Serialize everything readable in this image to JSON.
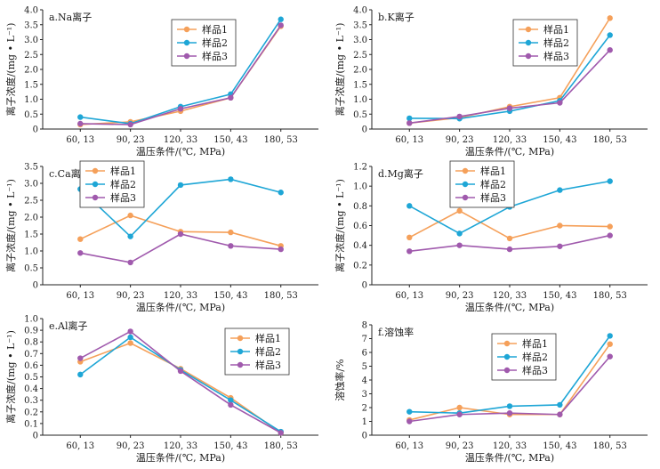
{
  "chart_data": [
    {
      "type": "line",
      "title": "a.Na离子",
      "xlabel": "温压条件/(℃, MPa)",
      "ylabel": "离子浓度/(mg • L⁻¹)",
      "categories": [
        "60, 13",
        "90, 23",
        "120, 33",
        "150, 43",
        "180, 53"
      ],
      "ylim": [
        0,
        4.0
      ],
      "yticks": [
        "0",
        "0.5",
        "1.0",
        "1.5",
        "2.0",
        "2.5",
        "3.0",
        "3.5",
        "4.0"
      ],
      "legend_position": "top-center",
      "series": [
        {
          "name": "样品1",
          "color": "#f5a05a",
          "values": [
            0.15,
            0.24,
            0.6,
            1.05,
            3.45
          ]
        },
        {
          "name": "样品2",
          "color": "#1ea6d6",
          "values": [
            0.4,
            0.18,
            0.75,
            1.17,
            3.68
          ]
        },
        {
          "name": "样品3",
          "color": "#a05aad",
          "values": [
            0.18,
            0.15,
            0.68,
            1.05,
            3.48
          ]
        }
      ]
    },
    {
      "type": "line",
      "title": "b.K离子",
      "xlabel": "温压条件/(℃, MPa)",
      "ylabel": "离子浓度/(mg • L⁻¹)",
      "categories": [
        "60, 13",
        "90, 23",
        "120, 33",
        "150, 43",
        "180, 53"
      ],
      "ylim": [
        0,
        4.0
      ],
      "yticks": [
        "0",
        "0.5",
        "1.0",
        "1.5",
        "2.0",
        "2.5",
        "3.0",
        "3.5",
        "4.0"
      ],
      "legend_position": "top-right",
      "series": [
        {
          "name": "样品1",
          "color": "#f5a05a",
          "values": [
            0.2,
            0.38,
            0.75,
            1.05,
            3.72
          ]
        },
        {
          "name": "样品2",
          "color": "#1ea6d6",
          "values": [
            0.36,
            0.35,
            0.6,
            0.95,
            3.15
          ]
        },
        {
          "name": "样品3",
          "color": "#a05aad",
          "values": [
            0.2,
            0.42,
            0.7,
            0.88,
            2.65
          ]
        }
      ]
    },
    {
      "type": "line",
      "title": "c.Ca离子",
      "xlabel": "温压条件/(℃, MPa)",
      "ylabel": "离子浓度/(mg • L⁻¹)",
      "categories": [
        "60, 13",
        "90, 23",
        "120, 33",
        "150, 43",
        "180, 53"
      ],
      "ylim": [
        0,
        3.5
      ],
      "yticks": [
        "0",
        "0.5",
        "1.0",
        "1.5",
        "2.0",
        "2.5",
        "3.0",
        "3.5"
      ],
      "legend_position": "top-left",
      "series": [
        {
          "name": "样品1",
          "color": "#f5a05a",
          "values": [
            1.35,
            2.05,
            1.57,
            1.55,
            1.15
          ]
        },
        {
          "name": "样品2",
          "color": "#1ea6d6",
          "values": [
            2.83,
            1.43,
            2.95,
            3.12,
            2.73
          ]
        },
        {
          "name": "样品3",
          "color": "#a05aad",
          "values": [
            0.94,
            0.66,
            1.5,
            1.15,
            1.05
          ]
        }
      ]
    },
    {
      "type": "line",
      "title": "d.Mg离子",
      "xlabel": "温压条件/(℃, MPa)",
      "ylabel": "离子浓度/(mg • L⁻¹)",
      "categories": [
        "60, 13",
        "90, 23",
        "120, 33",
        "150, 43",
        "180, 53"
      ],
      "ylim": [
        0,
        1.2
      ],
      "yticks": [
        "0",
        "0.2",
        "0.4",
        "0.6",
        "0.8",
        "1.0",
        "1.2"
      ],
      "legend_position": "top-center",
      "series": [
        {
          "name": "样品1",
          "color": "#f5a05a",
          "values": [
            0.48,
            0.75,
            0.47,
            0.6,
            0.59
          ]
        },
        {
          "name": "样品2",
          "color": "#1ea6d6",
          "values": [
            0.8,
            0.52,
            0.79,
            0.96,
            1.05
          ]
        },
        {
          "name": "样品3",
          "color": "#a05aad",
          "values": [
            0.34,
            0.4,
            0.36,
            0.39,
            0.5
          ]
        }
      ]
    },
    {
      "type": "line",
      "title": "e.Al离子",
      "xlabel": "温压条件/(℃, MPa)",
      "ylabel": "离子浓度/(mg • L⁻¹)",
      "categories": [
        "60, 13",
        "90, 23",
        "120, 33",
        "150, 43",
        "180, 53"
      ],
      "ylim": [
        0,
        1.0
      ],
      "yticks": [
        "0",
        "0.1",
        "0.2",
        "0.3",
        "0.4",
        "0.5",
        "0.6",
        "0.7",
        "0.8",
        "0.9",
        "1.0"
      ],
      "legend_position": "top-right",
      "series": [
        {
          "name": "样品1",
          "color": "#f5a05a",
          "values": [
            0.63,
            0.79,
            0.57,
            0.32,
            0.02
          ]
        },
        {
          "name": "样品2",
          "color": "#1ea6d6",
          "values": [
            0.52,
            0.84,
            0.56,
            0.3,
            0.03
          ]
        },
        {
          "name": "样品3",
          "color": "#a05aad",
          "values": [
            0.66,
            0.89,
            0.55,
            0.26,
            0.02
          ]
        }
      ]
    },
    {
      "type": "line",
      "title": "f.溶蚀率",
      "xlabel": "温压条件/(℃, MPa)",
      "ylabel": "溶蚀率/%",
      "categories": [
        "60, 13",
        "90, 23",
        "120, 33",
        "150, 43",
        "180, 53"
      ],
      "ylim": [
        0,
        8
      ],
      "yticks": [
        "0",
        "1",
        "2",
        "3",
        "4",
        "5",
        "6",
        "7",
        "8"
      ],
      "legend_position": "top-center",
      "series": [
        {
          "name": "样品1",
          "color": "#f5a05a",
          "values": [
            1.1,
            2.0,
            1.5,
            1.5,
            6.6
          ]
        },
        {
          "name": "样品2",
          "color": "#1ea6d6",
          "values": [
            1.7,
            1.6,
            2.1,
            2.2,
            7.2
          ]
        },
        {
          "name": "样品3",
          "color": "#a05aad",
          "values": [
            1.0,
            1.5,
            1.6,
            1.5,
            5.7
          ]
        }
      ]
    }
  ]
}
